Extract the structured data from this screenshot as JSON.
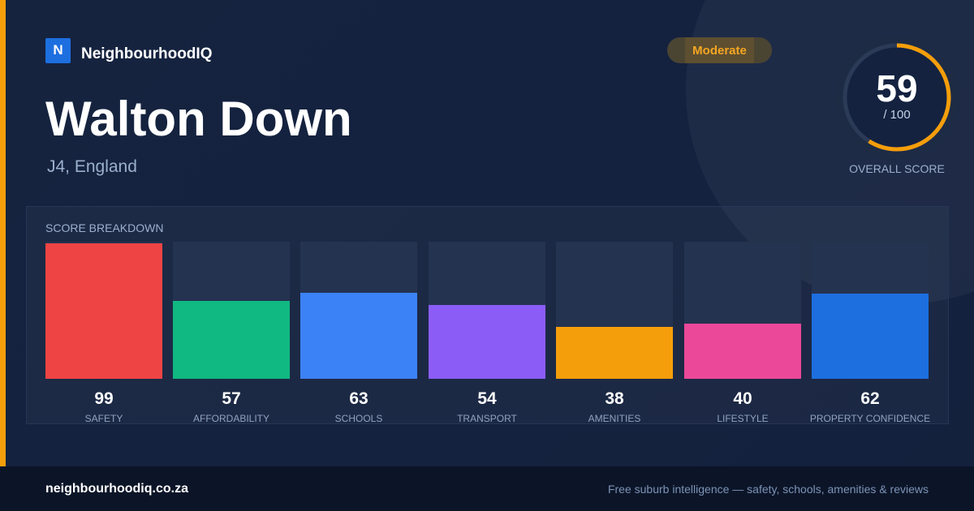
{
  "brand": {
    "logo_letter": "N",
    "name": "NeighbourhoodIQ"
  },
  "place": {
    "name": "Walton Down",
    "location": "J4, England"
  },
  "rating_badge": {
    "label": "Moderate",
    "color": "#f5a623"
  },
  "overall": {
    "score": "59",
    "max_label": "/ 100",
    "caption": "OVERALL SCORE",
    "value": 59,
    "max": 100,
    "ring_color": "#f59e0b"
  },
  "breakdown": {
    "title": "SCORE BREAKDOWN",
    "items": [
      {
        "label": "SAFETY",
        "value": "99",
        "score": 99,
        "color": "#ef4444"
      },
      {
        "label": "AFFORDABILITY",
        "value": "57",
        "score": 57,
        "color": "#10b981"
      },
      {
        "label": "SCHOOLS",
        "value": "63",
        "score": 63,
        "color": "#3b82f6"
      },
      {
        "label": "TRANSPORT",
        "value": "54",
        "score": 54,
        "color": "#8b5cf6"
      },
      {
        "label": "AMENITIES",
        "value": "38",
        "score": 38,
        "color": "#f59e0b"
      },
      {
        "label": "LIFESTYLE",
        "value": "40",
        "score": 40,
        "color": "#ec4899"
      },
      {
        "label": "PROPERTY CONFIDENCE",
        "value": "62",
        "score": 62,
        "color": "#1d6fe0"
      }
    ]
  },
  "footer": {
    "url": "neighbourhoodiq.co.za",
    "tagline": "Free suburb intelligence — safety, schools, amenities & reviews"
  }
}
